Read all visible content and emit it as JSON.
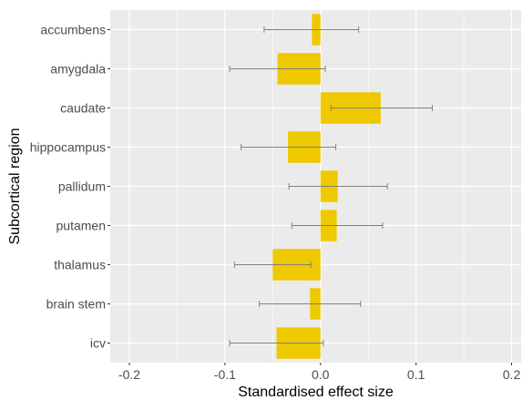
{
  "chart_data": {
    "type": "bar",
    "orientation": "horizontal",
    "xlabel": "Standardised effect size",
    "ylabel": "Subcortical region",
    "xlim": [
      -0.22,
      0.21
    ],
    "xticks": [
      -0.2,
      -0.1,
      0.0,
      0.1,
      0.2
    ],
    "xtick_labels": [
      "-0.2",
      "-0.1",
      "0.0",
      "0.1",
      "0.2"
    ],
    "grid": true,
    "legend": "none",
    "categories": [
      "accumbens",
      "amygdala",
      "caudate",
      "hippocampus",
      "pallidum",
      "putamen",
      "thalamus",
      "brain stem",
      "icv"
    ],
    "values": [
      -0.009,
      -0.045,
      0.063,
      -0.034,
      0.018,
      0.017,
      -0.05,
      -0.011,
      -0.046
    ],
    "ci_low": [
      -0.059,
      -0.095,
      0.011,
      -0.083,
      -0.033,
      -0.03,
      -0.09,
      -0.064,
      -0.095
    ],
    "ci_high": [
      0.04,
      0.005,
      0.117,
      0.016,
      0.07,
      0.065,
      -0.01,
      0.042,
      0.003
    ],
    "colors": {
      "bar": "#eec900",
      "errorbar": "#808080",
      "panel": "#ebebeb",
      "grid": "#ffffff"
    }
  }
}
